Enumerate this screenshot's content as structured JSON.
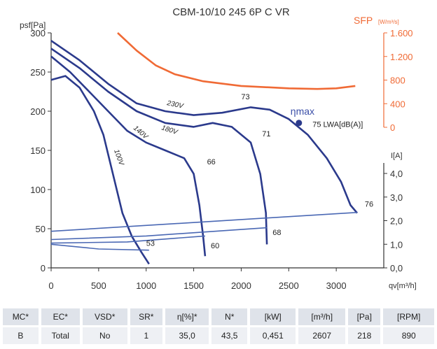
{
  "chart_data": {
    "type": "line",
    "title": "CBM-10/10 245 6P C VR",
    "ylabel": "psf[Pa]",
    "xlabel": "qv[m³/h]",
    "xlim": [
      0,
      3500
    ],
    "ylim": [
      0,
      300
    ],
    "xticks": [
      0,
      500,
      1000,
      1500,
      2000,
      2500,
      3000
    ],
    "yticks": [
      0,
      50,
      100,
      150,
      200,
      250,
      300
    ],
    "sfp_axis": {
      "label": "SFP",
      "unit": "[W/m³/s]",
      "color": "#f06a35",
      "lim": [
        0,
        1600
      ],
      "ticks": [
        0,
        400,
        800,
        {
          "value": 1200,
          "label": "1.200"
        },
        {
          "value": 1600,
          "label": "1.600"
        }
      ]
    },
    "current_axis": {
      "label": "I[A]",
      "lim": [
        0,
        4
      ],
      "ticks": [
        {
          "value": 0,
          "label": "0,0"
        },
        {
          "value": 1,
          "label": "1,0"
        },
        {
          "value": 2,
          "label": "2,0"
        },
        {
          "value": 3,
          "label": "3,0"
        },
        {
          "value": 4,
          "label": "4,0"
        }
      ]
    },
    "series": [
      {
        "name": "100V",
        "color": "#2b3a8c",
        "x": [
          0,
          150,
          300,
          450,
          550,
          650,
          750,
          850,
          950,
          1030
        ],
        "values": [
          240,
          245,
          230,
          200,
          170,
          120,
          70,
          40,
          20,
          5
        ]
      },
      {
        "name": "140V",
        "color": "#2b3a8c",
        "x": [
          0,
          200,
          400,
          600,
          800,
          1000,
          1200,
          1400,
          1500,
          1560,
          1600,
          1620
        ],
        "values": [
          270,
          250,
          225,
          200,
          175,
          160,
          150,
          140,
          120,
          80,
          40,
          15
        ]
      },
      {
        "name": "180V",
        "color": "#2b3a8c",
        "x": [
          0,
          300,
          600,
          900,
          1200,
          1500,
          1700,
          1900,
          2100,
          2200,
          2260,
          2270
        ],
        "values": [
          280,
          255,
          225,
          200,
          185,
          180,
          185,
          180,
          160,
          120,
          70,
          30
        ]
      },
      {
        "name": "230V",
        "color": "#2b3a8c",
        "x": [
          0,
          300,
          600,
          900,
          1200,
          1500,
          1800,
          2100,
          2300,
          2500,
          2700,
          2900,
          3050,
          3150,
          3220
        ],
        "values": [
          290,
          265,
          235,
          210,
          200,
          195,
          198,
          205,
          202,
          190,
          170,
          140,
          110,
          80,
          70
        ]
      },
      {
        "color": "#f06a35",
        "axis": "sfp",
        "x": [
          700,
          900,
          1100,
          1300,
          1600,
          2000,
          2500,
          2800,
          3000,
          3200
        ],
        "values": [
          1600,
          1300,
          1050,
          900,
          780,
          700,
          660,
          650,
          660,
          700
        ]
      },
      {
        "color": "#4a68b4",
        "axis": "current",
        "x": [
          0,
          3220
        ],
        "values": [
          1.55,
          2.35
        ]
      },
      {
        "color": "#4a68b4",
        "axis": "current",
        "x": [
          0,
          1000,
          2270
        ],
        "values": [
          1.2,
          1.35,
          1.7
        ]
      },
      {
        "color": "#4a68b4",
        "axis": "current",
        "x": [
          0,
          800,
          1620
        ],
        "values": [
          1.05,
          1.1,
          1.35
        ]
      },
      {
        "color": "#4a68b4",
        "axis": "current",
        "x": [
          0,
          500,
          1030
        ],
        "values": [
          1.0,
          0.8,
          0.75
        ]
      }
    ],
    "annotations": [
      {
        "text": "53",
        "x": 1000,
        "y": 28
      },
      {
        "text": "60",
        "x": 1680,
        "y": 25
      },
      {
        "text": "66",
        "x": 1640,
        "y": 132
      },
      {
        "text": "68",
        "x": 2330,
        "y": 42
      },
      {
        "text": "71",
        "x": 2220,
        "y": 168
      },
      {
        "text": "73",
        "x": 2000,
        "y": 215
      },
      {
        "text": "75 LWA[dB(A)]",
        "x": 2750,
        "y": 180
      },
      {
        "text": "76",
        "x": 3300,
        "y": 78
      }
    ],
    "eta_max": {
      "label": "ηmax",
      "x": 2607,
      "y": 185
    }
  },
  "table": {
    "header": [
      "MC*",
      "EC*",
      "VSD*",
      "SR*",
      "η[%]*",
      "N*",
      "[kW]",
      "[m³/h]",
      "[Pa]",
      "[RPM]"
    ],
    "rows": [
      [
        "B",
        "Total",
        "No",
        "1",
        "35,0",
        "43,5",
        "0,451",
        "2607",
        "218",
        "890"
      ]
    ]
  }
}
